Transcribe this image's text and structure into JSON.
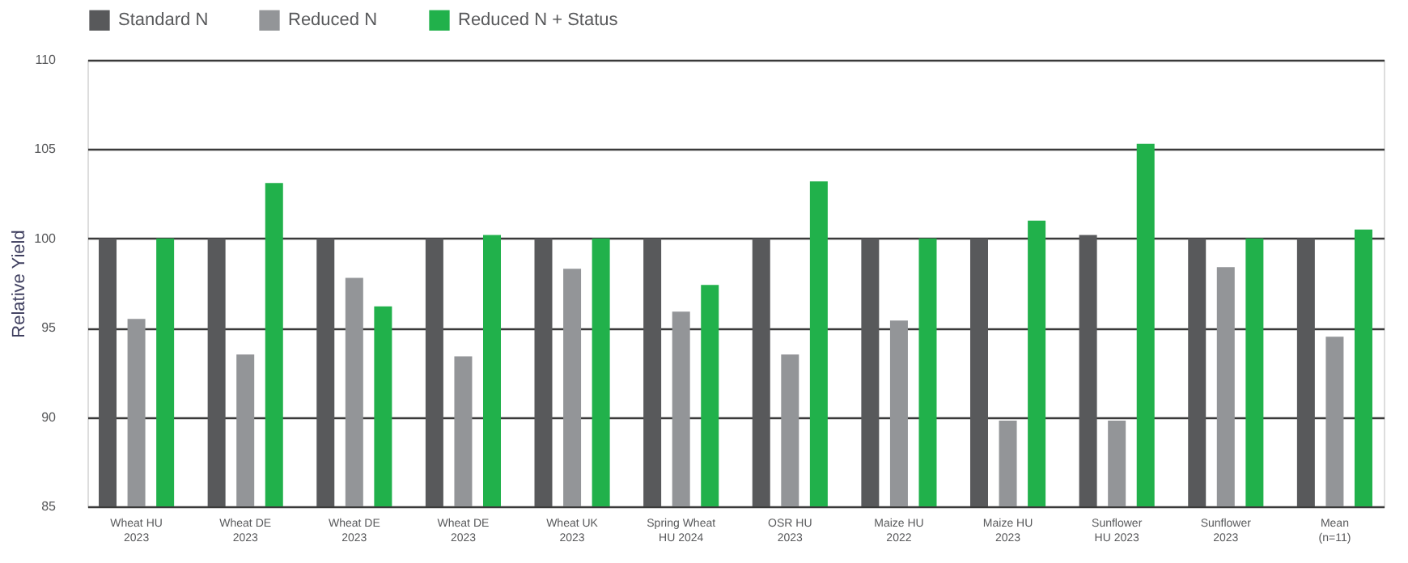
{
  "chart_data": {
    "type": "bar",
    "ylabel": "Relative Yield",
    "categories": [
      "Wheat HU\n2023",
      "Wheat DE\n2023",
      "Wheat DE\n2023",
      "Wheat DE\n2023",
      "Wheat UK\n2023",
      "Spring Wheat\nHU 2024",
      "OSR HU\n2023",
      "Maize HU\n2022",
      "Maize HU\n2023",
      "Sunflower\nHU 2023",
      "Sunflower\n2023",
      "Mean\n(n=11)"
    ],
    "series": [
      {
        "name": "Standard N",
        "color": "#58595b",
        "values": [
          100,
          100,
          100,
          100,
          100,
          100,
          100,
          100,
          100,
          100.2,
          100,
          100
        ]
      },
      {
        "name": "Reduced N",
        "color": "#939598",
        "values": [
          95.5,
          93.5,
          97.8,
          93.4,
          98.3,
          95.9,
          93.5,
          95.4,
          89.8,
          89.8,
          98.4,
          94.5
        ]
      },
      {
        "name": "Reduced N  + Status",
        "color": "#21b14b",
        "values": [
          100,
          103.1,
          96.2,
          100.2,
          100,
          97.4,
          103.2,
          100,
          101.0,
          105.3,
          100,
          100.5
        ]
      }
    ],
    "ylim": [
      85,
      110
    ],
    "yticks": [
      85,
      90,
      95,
      100,
      105,
      110
    ],
    "grid": "y",
    "legend": "top"
  }
}
